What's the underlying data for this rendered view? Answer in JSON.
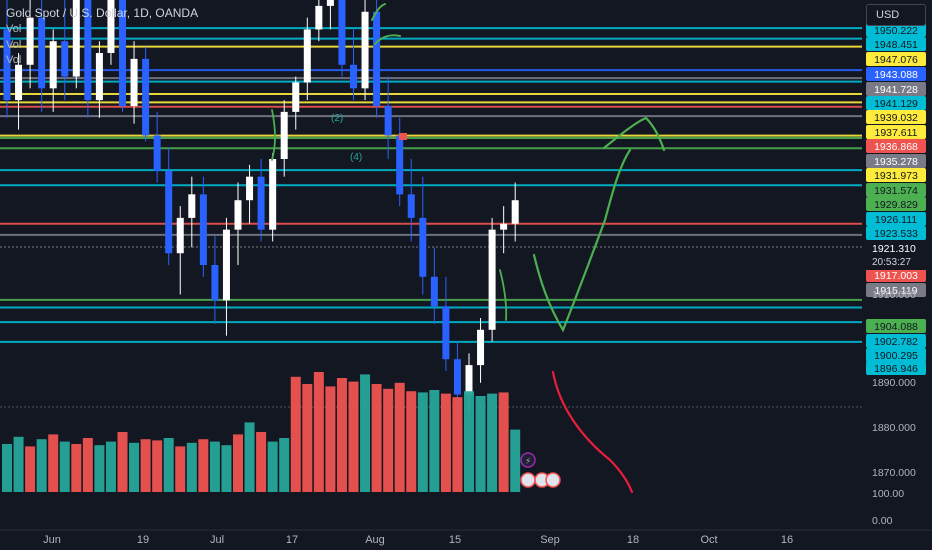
{
  "header": {
    "symbol_title": "Gold Spot / U.S. Dollar, 1D, OANDA",
    "vol_labels": [
      "Vol",
      "Vol",
      "Vol"
    ],
    "currency": "USD"
  },
  "colors": {
    "background": "#131722",
    "bull": "#ffffff",
    "bear": "#2962ff",
    "vol_up": "#26a69a",
    "vol_down": "#ef5350",
    "drawing_green": "#4caf50",
    "drawing_red": "#e91e3c"
  },
  "price_axis": {
    "ticks": [
      "1910.000",
      "1890.000",
      "1880.000",
      "1870.000"
    ],
    "current_price": "1921.310",
    "countdown": "20:53:27",
    "volume_ticks": [
      "100.00",
      "0.00"
    ]
  },
  "time_axis": {
    "labels": [
      "Jun",
      "19",
      "Jul",
      "17",
      "Aug",
      "15",
      "Sep",
      "18",
      "Oct",
      "16"
    ]
  },
  "level_lines": [
    {
      "price": 1950.222,
      "label": "1950.222",
      "color": "#00bcd4"
    },
    {
      "price": 1948.451,
      "label": "1948.451",
      "color": "#00bcd4"
    },
    {
      "price": 1947.076,
      "label": "1947.076",
      "color": "#ffeb3b"
    },
    {
      "price": 1943.088,
      "label": "1943.088",
      "color": "#2962ff"
    },
    {
      "price": 1941.728,
      "label": "1941.728",
      "color": "#787b86"
    },
    {
      "price": 1941.129,
      "label": "1941.129",
      "color": "#00bcd4"
    },
    {
      "price": 1939.032,
      "label": "1939.032",
      "color": "#ffeb3b"
    },
    {
      "price": 1937.611,
      "label": "1937.611",
      "color": "#ffeb3b"
    },
    {
      "price": 1936.868,
      "label": "1936.868",
      "color": "#ef5350"
    },
    {
      "price": 1935.278,
      "label": "1935.278",
      "color": "#787b86"
    },
    {
      "price": 1931.973,
      "label": "1931.973",
      "color": "#ffeb3b"
    },
    {
      "price": 1931.574,
      "label": "1931.574",
      "color": "#4caf50"
    },
    {
      "price": 1929.829,
      "label": "1929.829",
      "color": "#4caf50"
    },
    {
      "price": 1926.111,
      "label": "1926.111",
      "color": "#00bcd4"
    },
    {
      "price": 1923.533,
      "label": "1923.533",
      "color": "#00bcd4"
    },
    {
      "price": 1917.003,
      "label": "1917.003",
      "color": "#ef5350"
    },
    {
      "price": 1915.119,
      "label": "1915.119",
      "color": "#787b86"
    },
    {
      "price": 1904.088,
      "label": "1904.088",
      "color": "#4caf50"
    },
    {
      "price": 1902.782,
      "label": "1902.782",
      "color": "#00bcd4"
    },
    {
      "price": 1900.295,
      "label": "1900.295",
      "color": "#00bcd4"
    },
    {
      "price": 1896.946,
      "label": "1896.946",
      "color": "#00bcd4"
    }
  ],
  "chart_data": {
    "type": "candlestick",
    "title": "Gold Spot / U.S. Dollar, 1D, OANDA",
    "x_axis": [
      "Jun",
      "19",
      "Jul",
      "17",
      "Aug",
      "15",
      "Sep",
      "18",
      "Oct",
      "16"
    ],
    "y_axis_ticks": [
      1910,
      1890,
      1880,
      1870
    ],
    "y_range": [
      1865,
      1955
    ],
    "grid": false,
    "last_price": 1921.31,
    "candles": [
      {
        "o": 1950,
        "h": 1956,
        "l": 1935,
        "c": 1938
      },
      {
        "o": 1938,
        "h": 1946,
        "l": 1933,
        "c": 1944
      },
      {
        "o": 1944,
        "h": 1955,
        "l": 1940,
        "c": 1952
      },
      {
        "o": 1952,
        "h": 1955,
        "l": 1936,
        "c": 1940
      },
      {
        "o": 1940,
        "h": 1950,
        "l": 1936,
        "c": 1948
      },
      {
        "o": 1948,
        "h": 1955,
        "l": 1938,
        "c": 1942
      },
      {
        "o": 1942,
        "h": 1958,
        "l": 1940,
        "c": 1955
      },
      {
        "o": 1955,
        "h": 1957,
        "l": 1935,
        "c": 1938
      },
      {
        "o": 1938,
        "h": 1948,
        "l": 1935,
        "c": 1946
      },
      {
        "o": 1946,
        "h": 1957,
        "l": 1944,
        "c": 1955
      },
      {
        "o": 1955,
        "h": 1956,
        "l": 1936,
        "c": 1937
      },
      {
        "o": 1937,
        "h": 1948,
        "l": 1934,
        "c": 1945
      },
      {
        "o": 1945,
        "h": 1947,
        "l": 1931,
        "c": 1932
      },
      {
        "o": 1932,
        "h": 1936,
        "l": 1924,
        "c": 1926
      },
      {
        "o": 1926,
        "h": 1930,
        "l": 1910,
        "c": 1912
      },
      {
        "o": 1912,
        "h": 1920,
        "l": 1905,
        "c": 1918
      },
      {
        "o": 1918,
        "h": 1925,
        "l": 1913,
        "c": 1922
      },
      {
        "o": 1922,
        "h": 1925,
        "l": 1908,
        "c": 1910
      },
      {
        "o": 1910,
        "h": 1915,
        "l": 1900,
        "c": 1904
      },
      {
        "o": 1904,
        "h": 1918,
        "l": 1898,
        "c": 1916
      },
      {
        "o": 1916,
        "h": 1924,
        "l": 1910,
        "c": 1921
      },
      {
        "o": 1921,
        "h": 1927,
        "l": 1917,
        "c": 1925
      },
      {
        "o": 1925,
        "h": 1928,
        "l": 1914,
        "c": 1916
      },
      {
        "o": 1916,
        "h": 1929,
        "l": 1914,
        "c": 1928
      },
      {
        "o": 1928,
        "h": 1938,
        "l": 1925,
        "c": 1936
      },
      {
        "o": 1936,
        "h": 1942,
        "l": 1933,
        "c": 1941
      },
      {
        "o": 1941,
        "h": 1952,
        "l": 1938,
        "c": 1950
      },
      {
        "o": 1950,
        "h": 1956,
        "l": 1948,
        "c": 1954
      },
      {
        "o": 1954,
        "h": 1962,
        "l": 1950,
        "c": 1958
      },
      {
        "o": 1958,
        "h": 1962,
        "l": 1942,
        "c": 1944
      },
      {
        "o": 1944,
        "h": 1950,
        "l": 1938,
        "c": 1940
      },
      {
        "o": 1940,
        "h": 1955,
        "l": 1938,
        "c": 1953
      },
      {
        "o": 1953,
        "h": 1958,
        "l": 1935,
        "c": 1937
      },
      {
        "o": 1937,
        "h": 1942,
        "l": 1928,
        "c": 1932
      },
      {
        "o": 1932,
        "h": 1935,
        "l": 1920,
        "c": 1922
      },
      {
        "o": 1922,
        "h": 1928,
        "l": 1914,
        "c": 1918
      },
      {
        "o": 1918,
        "h": 1925,
        "l": 1905,
        "c": 1908
      },
      {
        "o": 1908,
        "h": 1913,
        "l": 1900,
        "c": 1903
      },
      {
        "o": 1903,
        "h": 1908,
        "l": 1892,
        "c": 1894
      },
      {
        "o": 1894,
        "h": 1897,
        "l": 1884,
        "c": 1888
      },
      {
        "o": 1888,
        "h": 1895,
        "l": 1885,
        "c": 1893
      },
      {
        "o": 1893,
        "h": 1901,
        "l": 1890,
        "c": 1899
      },
      {
        "o": 1899,
        "h": 1918,
        "l": 1897,
        "c": 1916
      },
      {
        "o": 1916,
        "h": 1920,
        "l": 1912,
        "c": 1917
      },
      {
        "o": 1917,
        "h": 1924,
        "l": 1914,
        "c": 1921
      }
    ],
    "volume": [
      {
        "v": 40,
        "up": true
      },
      {
        "v": 46,
        "up": true
      },
      {
        "v": 38,
        "up": false
      },
      {
        "v": 44,
        "up": true
      },
      {
        "v": 48,
        "up": false
      },
      {
        "v": 42,
        "up": true
      },
      {
        "v": 40,
        "up": false
      },
      {
        "v": 45,
        "up": false
      },
      {
        "v": 39,
        "up": true
      },
      {
        "v": 42,
        "up": true
      },
      {
        "v": 50,
        "up": false
      },
      {
        "v": 41,
        "up": true
      },
      {
        "v": 44,
        "up": false
      },
      {
        "v": 43,
        "up": false
      },
      {
        "v": 45,
        "up": true
      },
      {
        "v": 38,
        "up": false
      },
      {
        "v": 41,
        "up": true
      },
      {
        "v": 44,
        "up": false
      },
      {
        "v": 42,
        "up": true
      },
      {
        "v": 39,
        "up": true
      },
      {
        "v": 48,
        "up": false
      },
      {
        "v": 58,
        "up": true
      },
      {
        "v": 50,
        "up": false
      },
      {
        "v": 42,
        "up": true
      },
      {
        "v": 45,
        "up": true
      },
      {
        "v": 96,
        "up": false
      },
      {
        "v": 90,
        "up": false
      },
      {
        "v": 100,
        "up": false
      },
      {
        "v": 88,
        "up": false
      },
      {
        "v": 95,
        "up": false
      },
      {
        "v": 92,
        "up": false
      },
      {
        "v": 98,
        "up": true
      },
      {
        "v": 90,
        "up": false
      },
      {
        "v": 86,
        "up": false
      },
      {
        "v": 91,
        "up": false
      },
      {
        "v": 84,
        "up": false
      },
      {
        "v": 83,
        "up": true
      },
      {
        "v": 85,
        "up": true
      },
      {
        "v": 82,
        "up": false
      },
      {
        "v": 79,
        "up": false
      },
      {
        "v": 84,
        "up": true
      },
      {
        "v": 80,
        "up": true
      },
      {
        "v": 82,
        "up": true
      },
      {
        "v": 83,
        "up": false
      },
      {
        "v": 52,
        "up": true
      }
    ]
  }
}
